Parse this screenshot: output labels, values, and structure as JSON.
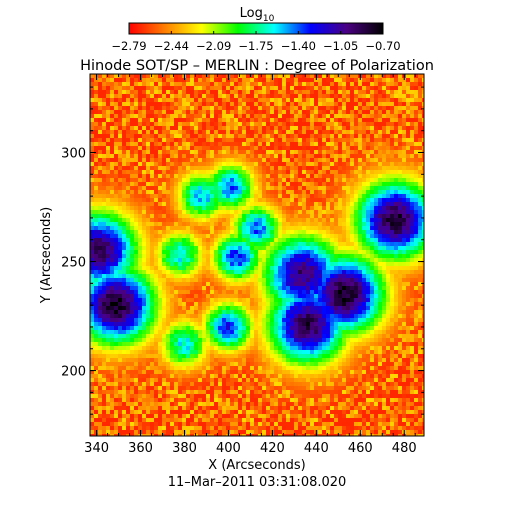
{
  "chart_data": {
    "type": "heatmap",
    "title": "Hinode SOT/SP – MERLIN : Degree of Polarization",
    "xlabel": "X (Arcseconds)",
    "ylabel": "Y (Arcseconds)",
    "date_label": "11–Mar–2011 03:31:08.020",
    "xlim": [
      337,
      489
    ],
    "ylim": [
      170,
      336
    ],
    "x_ticks": [
      340,
      360,
      380,
      400,
      420,
      440,
      460,
      480
    ],
    "y_ticks": [
      200,
      250,
      300
    ],
    "colorbar": {
      "label_base": "Log",
      "label_sub": "10",
      "range": [
        -2.79,
        -0.7
      ],
      "tick_labels": [
        "−2.79",
        "−2.44",
        "−2.09",
        "−1.75",
        "−1.40",
        "−1.05",
        "−0.70"
      ],
      "colors": [
        "#ff0000",
        "#ff8000",
        "#ffff00",
        "#00ff00",
        "#00ffff",
        "#0000ff",
        "#4b0082",
        "#000000"
      ]
    },
    "features": [
      {
        "x": 341,
        "y": 255,
        "value": -0.9
      },
      {
        "x": 349,
        "y": 230,
        "value": -0.75
      },
      {
        "x": 453,
        "y": 235,
        "value": -0.75
      },
      {
        "x": 434,
        "y": 244,
        "value": -0.95
      },
      {
        "x": 436,
        "y": 221,
        "value": -0.85
      },
      {
        "x": 476,
        "y": 269,
        "value": -0.8
      },
      {
        "x": 404,
        "y": 252,
        "value": -1.3
      },
      {
        "x": 401,
        "y": 284,
        "value": -1.4
      },
      {
        "x": 388,
        "y": 280,
        "value": -1.5
      },
      {
        "x": 378,
        "y": 253,
        "value": -1.6
      },
      {
        "x": 400,
        "y": 220,
        "value": -1.3
      },
      {
        "x": 380,
        "y": 212,
        "value": -1.6
      },
      {
        "x": 413,
        "y": 265,
        "value": -1.4
      }
    ]
  }
}
